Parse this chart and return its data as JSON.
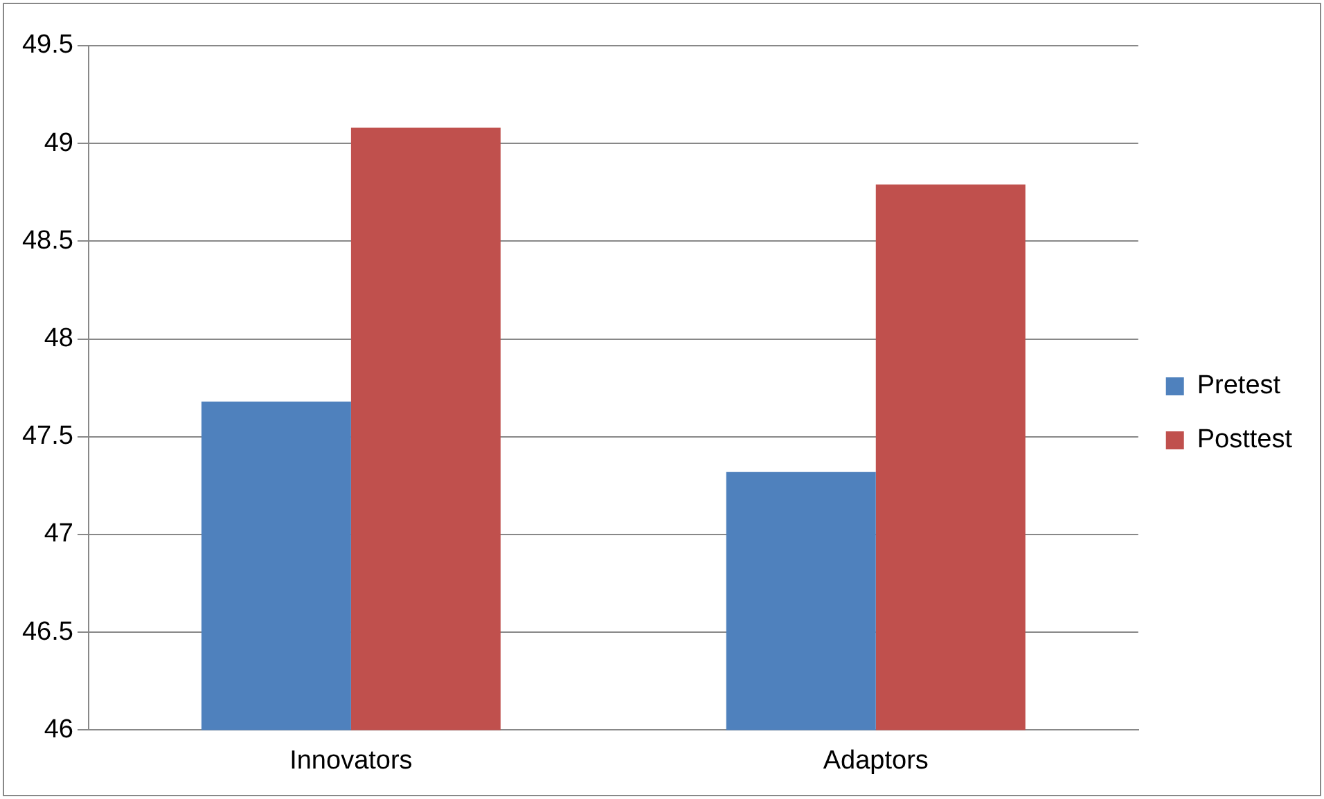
{
  "chart_data": {
    "type": "bar",
    "categories": [
      "Innovators",
      "Adaptors"
    ],
    "series": [
      {
        "name": "Pretest",
        "color": "#4f81bd",
        "values": [
          47.68,
          47.32
        ]
      },
      {
        "name": "Posttest",
        "color": "#c0504d",
        "values": [
          49.08,
          48.79
        ]
      }
    ],
    "ylim": [
      46,
      49.5
    ],
    "yticks": [
      46,
      46.5,
      47,
      47.5,
      48,
      48.5,
      49,
      49.5
    ],
    "grid": "y",
    "legend": "right"
  }
}
